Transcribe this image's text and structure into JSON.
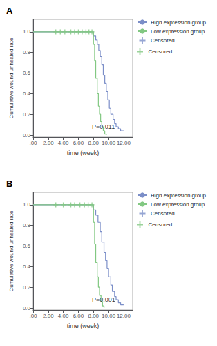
{
  "chart_data": [
    {
      "type": "line",
      "title": "A",
      "xlabel": "time (week)",
      "ylabel": "Cumulative wound unhealed rate",
      "xlim": [
        0.0,
        13.2
      ],
      "xticks": [
        {
          "value": 0.0,
          "label": ".00"
        },
        {
          "value": 2.0,
          "label": "2.00"
        },
        {
          "value": 4.0,
          "label": "4.00"
        },
        {
          "value": 6.0,
          "label": "6.00"
        },
        {
          "value": 8.0,
          "label": "8.00"
        },
        {
          "value": 10.0,
          "label": "10.00"
        },
        {
          "value": 12.0,
          "label": "12.00"
        }
      ],
      "ylim": [
        -0.02,
        1.12
      ],
      "yticks": [
        {
          "value": 0.0,
          "label": "0.0"
        },
        0.2,
        0.4,
        0.6,
        0.8,
        {
          "value": 1.0,
          "label": "1.0"
        }
      ],
      "grid": false,
      "legend": "right",
      "annotations": [
        {
          "text": "P=0.011",
          "x": 7.8,
          "y": 0.05
        }
      ],
      "series": [
        {
          "name": "High expression group",
          "type": "line",
          "line_style": "step",
          "color": "#7b8ec8",
          "x": [
            0,
            8.0,
            8.0,
            8.3,
            8.5,
            8.7,
            8.9,
            9.1,
            9.3,
            9.5,
            9.7,
            9.9,
            10.1,
            10.3,
            10.6,
            10.8,
            11.0,
            11.3,
            11.6,
            12.0
          ],
          "values": [
            1.0,
            1.0,
            0.96,
            0.92,
            0.88,
            0.82,
            0.76,
            0.68,
            0.58,
            0.5,
            0.42,
            0.34,
            0.26,
            0.2,
            0.15,
            0.11,
            0.08,
            0.06,
            0.04,
            0.04
          ]
        },
        {
          "name": "Low expression group",
          "type": "line",
          "line_style": "step",
          "color": "#82c882",
          "x": [
            0,
            8.0,
            8.0,
            8.15,
            8.3,
            8.5,
            8.65,
            8.8,
            8.95,
            9.1,
            9.3,
            9.5,
            9.7
          ],
          "values": [
            1.0,
            1.0,
            0.88,
            0.72,
            0.55,
            0.4,
            0.28,
            0.2,
            0.13,
            0.08,
            0.04,
            0.01,
            0.0
          ]
        },
        {
          "name": "Censored",
          "type": "scatter",
          "marker": "+",
          "color": "#7b8ec8",
          "x": [],
          "values": []
        },
        {
          "name": "Censored",
          "type": "scatter",
          "marker": "+",
          "color": "#82c882",
          "x": [
            3.0,
            3.6,
            4.2,
            5.0,
            5.5,
            6.0,
            6.5,
            7.0,
            7.4,
            7.8
          ],
          "values": [
            1.0,
            1.0,
            1.0,
            1.0,
            1.0,
            1.0,
            1.0,
            1.0,
            1.0,
            1.0
          ]
        }
      ]
    },
    {
      "type": "line",
      "title": "B",
      "xlabel": "time (week)",
      "ylabel": "Cumulative wound unhealed rate",
      "xlim": [
        0.0,
        13.2
      ],
      "xticks": [
        {
          "value": 0.0,
          "label": ".00"
        },
        {
          "value": 2.0,
          "label": "2.00"
        },
        {
          "value": 4.0,
          "label": "4.00"
        },
        {
          "value": 6.0,
          "label": "6.00"
        },
        {
          "value": 8.0,
          "label": "8.00"
        },
        {
          "value": 10.0,
          "label": "10.00"
        },
        {
          "value": 12.0,
          "label": "12.00"
        }
      ],
      "ylim": [
        -0.02,
        1.12
      ],
      "yticks": [
        {
          "value": 0.0,
          "label": "0.0"
        },
        0.2,
        0.4,
        0.6,
        0.8,
        {
          "value": 1.0,
          "label": "1.0"
        }
      ],
      "grid": false,
      "legend": "right",
      "annotations": [
        {
          "text": "P=0.001",
          "x": 7.8,
          "y": 0.05
        }
      ],
      "series": [
        {
          "name": "High expression group",
          "type": "line",
          "line_style": "step",
          "color": "#7b8ec8",
          "x": [
            0,
            8.0,
            8.0,
            8.3,
            8.6,
            8.9,
            9.1,
            9.4,
            9.6,
            9.8,
            10.0,
            10.3,
            10.5,
            10.8,
            11.0,
            11.3,
            11.6,
            12.0
          ],
          "values": [
            1.0,
            1.0,
            0.95,
            0.9,
            0.83,
            0.74,
            0.64,
            0.54,
            0.46,
            0.38,
            0.3,
            0.22,
            0.16,
            0.11,
            0.08,
            0.05,
            0.03,
            0.03
          ]
        },
        {
          "name": "Low expression group",
          "type": "line",
          "line_style": "step",
          "color": "#82c882",
          "x": [
            0,
            8.0,
            8.0,
            8.15,
            8.3,
            8.5,
            8.65,
            8.8,
            9.0,
            9.2,
            9.4
          ],
          "values": [
            1.0,
            1.0,
            0.83,
            0.62,
            0.44,
            0.3,
            0.2,
            0.12,
            0.06,
            0.02,
            0.0
          ]
        },
        {
          "name": "Censored",
          "type": "scatter",
          "marker": "+",
          "color": "#7b8ec8",
          "x": [],
          "values": []
        },
        {
          "name": "Censored",
          "type": "scatter",
          "marker": "+",
          "color": "#82c882",
          "x": [
            3.0,
            4.0,
            5.0,
            5.5,
            6.2,
            6.8,
            7.3,
            7.8
          ],
          "values": [
            1.0,
            1.0,
            1.0,
            1.0,
            1.0,
            1.0,
            1.0,
            1.0
          ]
        }
      ]
    }
  ]
}
